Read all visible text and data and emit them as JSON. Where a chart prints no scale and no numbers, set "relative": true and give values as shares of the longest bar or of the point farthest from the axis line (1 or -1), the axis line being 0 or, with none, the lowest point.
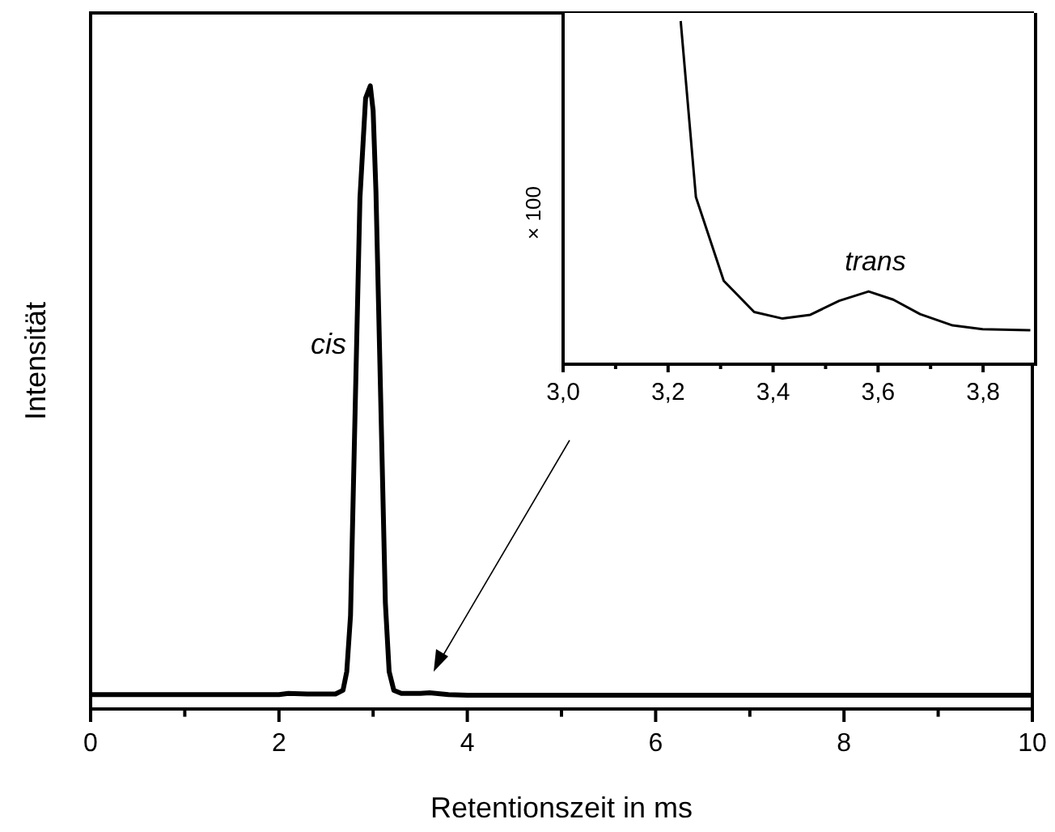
{
  "chart_data": [
    {
      "type": "line",
      "relative": true,
      "xlabel": "Retentionszeit in ms",
      "ylabel": "Intensität",
      "xlim": [
        0,
        10
      ],
      "xticks": [
        0,
        {
          "value": 1,
          "label": null
        },
        2,
        {
          "value": 3,
          "label": null
        },
        4,
        {
          "value": 5,
          "label": null
        },
        6,
        {
          "value": 7,
          "label": null
        },
        8,
        {
          "value": 9,
          "label": null
        },
        10
      ],
      "tick_labels": "x",
      "annotations": [
        "cis"
      ],
      "series": [
        {
          "color": "#000000",
          "x": [
            0,
            1,
            2,
            2.1,
            2.3,
            2.6,
            2.68,
            2.72,
            2.76,
            2.8,
            2.86,
            2.92,
            2.97,
            3.0,
            3.03,
            3.08,
            3.13,
            3.17,
            3.22,
            3.3,
            3.5,
            3.6,
            3.8,
            4,
            6,
            8,
            10
          ],
          "values": [
            0.023,
            0.023,
            0.023,
            0.025,
            0.024,
            0.024,
            0.03,
            0.06,
            0.15,
            0.42,
            0.82,
            0.98,
            1.0,
            0.96,
            0.83,
            0.5,
            0.17,
            0.06,
            0.03,
            0.025,
            0.025,
            0.026,
            0.023,
            0.022,
            0.022,
            0.022,
            0.022
          ]
        }
      ]
    },
    {
      "type": "line",
      "relative": true,
      "ylabel": "× 100",
      "xlim": [
        3.0,
        3.9
      ],
      "xticks": [
        {
          "value": 3.0,
          "label": "3,0"
        },
        {
          "value": 3.1,
          "label": null
        },
        {
          "value": 3.2,
          "label": "3,2"
        },
        {
          "value": 3.3,
          "label": null
        },
        {
          "value": 3.4,
          "label": "3,4"
        },
        {
          "value": 3.5,
          "label": null
        },
        {
          "value": 3.6,
          "label": "3,6"
        },
        {
          "value": 3.7,
          "label": null
        },
        {
          "value": 3.8,
          "label": "3,8"
        }
      ],
      "tick_labels": "x",
      "annotations": [
        "trans"
      ],
      "series": [
        {
          "color": "#000000",
          "x": [
            3.224,
            3.253,
            3.306,
            3.364,
            3.418,
            3.471,
            3.526,
            3.582,
            3.629,
            3.68,
            3.742,
            3.799,
            3.89
          ],
          "values": [
            1,
            0.487,
            0.243,
            0.152,
            0.133,
            0.144,
            0.185,
            0.212,
            0.188,
            0.146,
            0.113,
            0.102,
            0.099
          ]
        }
      ]
    }
  ]
}
